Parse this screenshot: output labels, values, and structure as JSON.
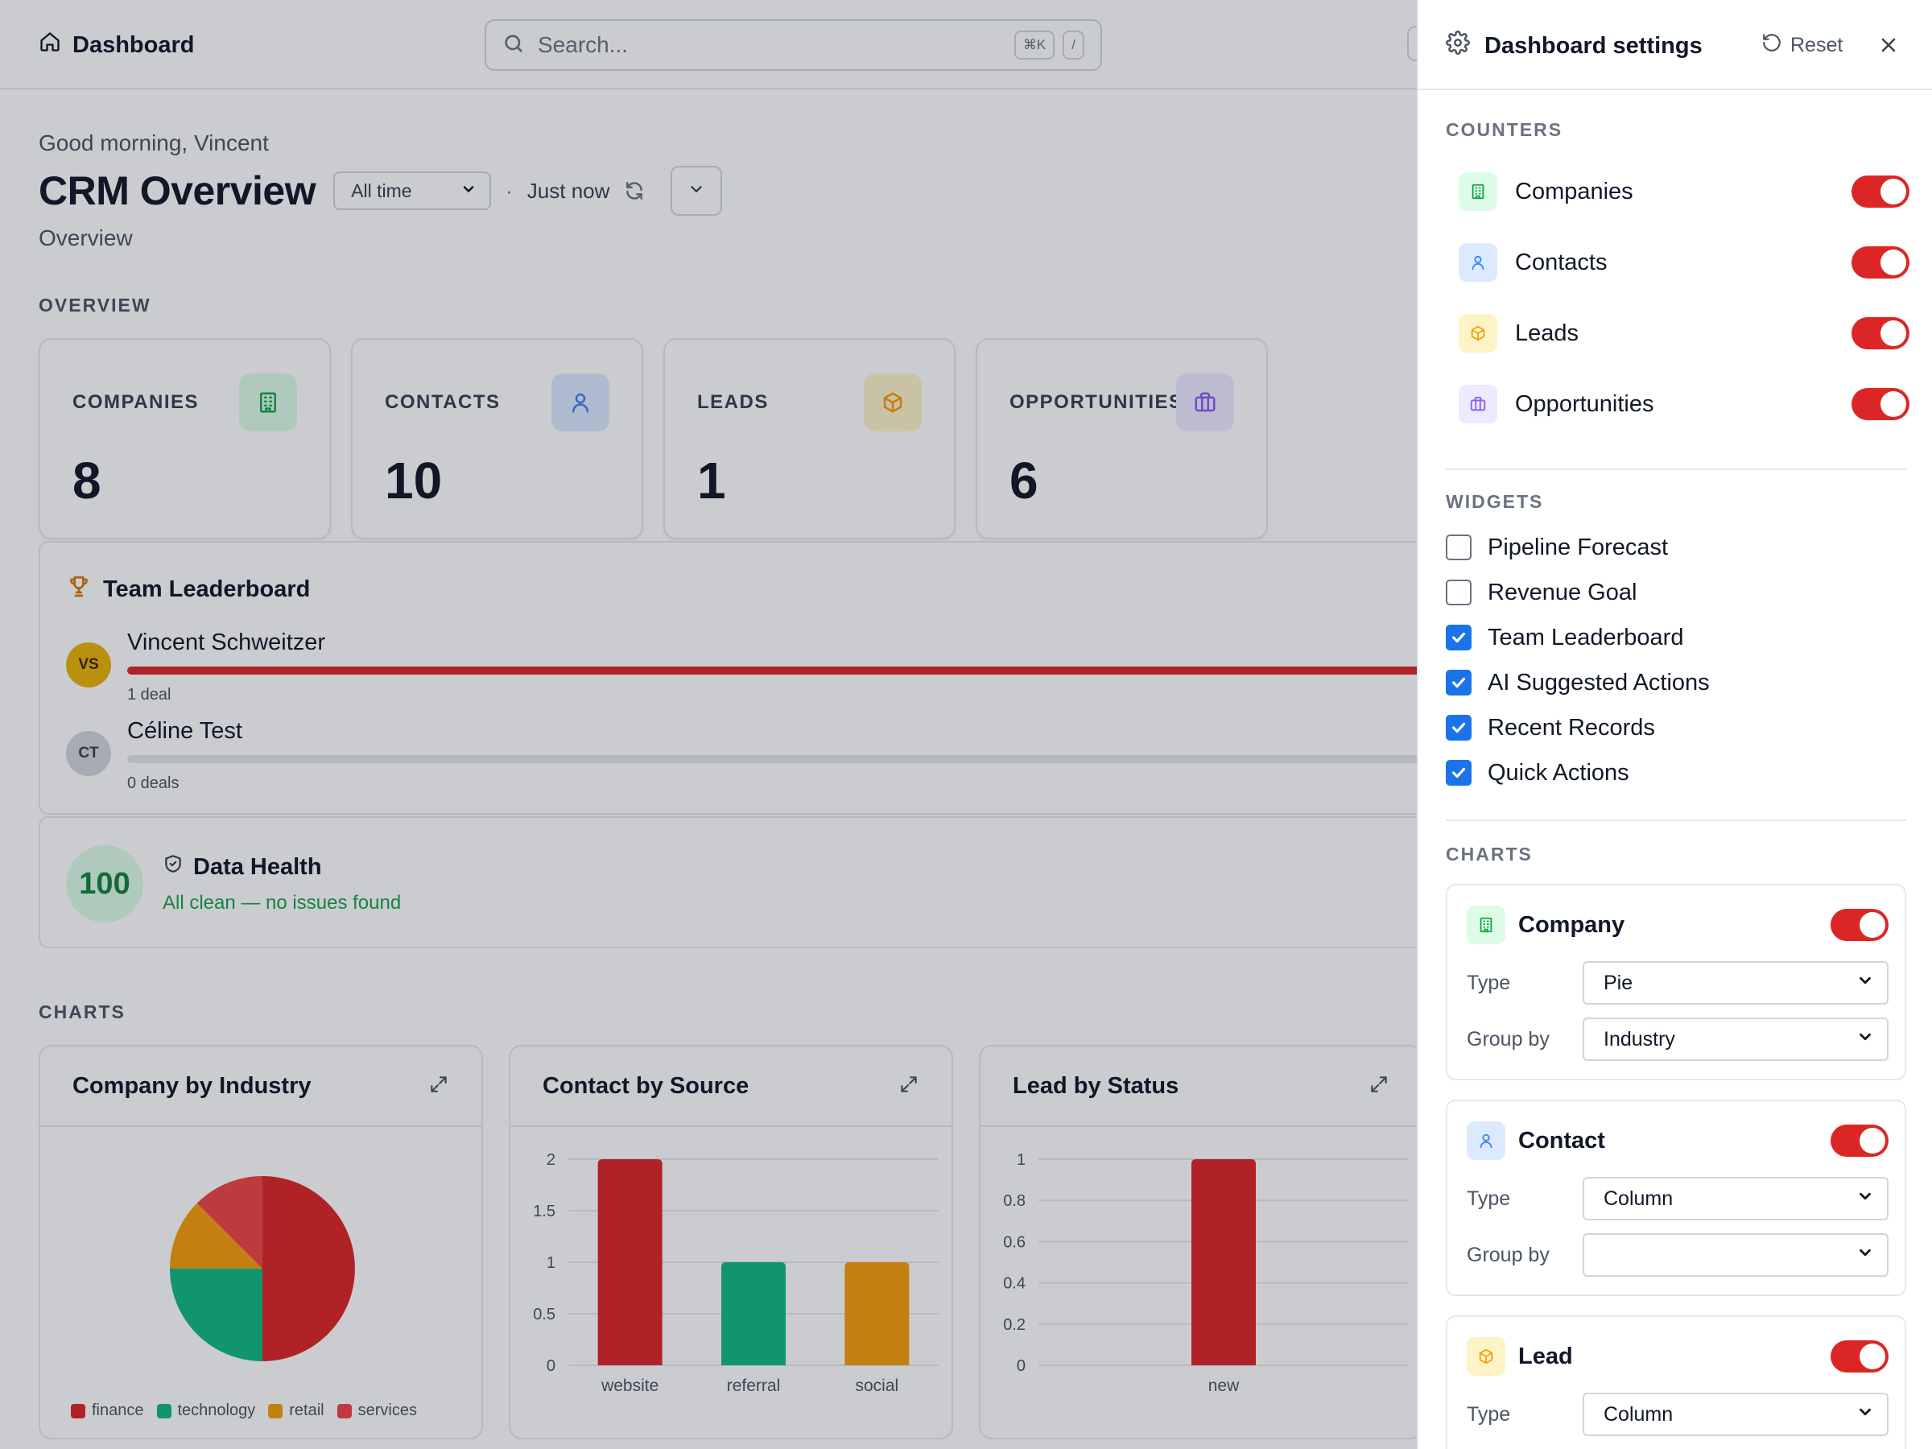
{
  "header": {
    "brand": "Dashboard",
    "search_placeholder": "Search...",
    "shortcut_primary": "⌘K",
    "shortcut_secondary": "/"
  },
  "page": {
    "greeting": "Good morning, Vincent",
    "title": "CRM Overview",
    "time_range": "All time",
    "separator": "·",
    "last_updated": "Just now",
    "subtitle": "Overview",
    "overview_label": "OVERVIEW",
    "charts_label": "CHARTS"
  },
  "stats": [
    {
      "label": "COMPANIES",
      "value": "8",
      "icon": "building-icon",
      "color": "#16a34a"
    },
    {
      "label": "CONTACTS",
      "value": "10",
      "icon": "user-icon",
      "color": "#3b82f6"
    },
    {
      "label": "LEADS",
      "value": "1",
      "icon": "box-icon",
      "color": "#f59e0b"
    },
    {
      "label": "OPPORTUNITIES",
      "value": "6",
      "icon": "briefcase-icon",
      "color": "#8b5cf6"
    }
  ],
  "leaderboard": {
    "title": "Team Leaderboard",
    "rows": [
      {
        "initials": "VS",
        "name": "Vincent Schweitzer",
        "deals": "1 deal",
        "share": 1.0
      },
      {
        "initials": "CT",
        "name": "Céline Test",
        "deals": "0 deals",
        "share": 0.0
      }
    ]
  },
  "data_health": {
    "score": "100",
    "title": "Data Health",
    "status": "All clean — no issues found"
  },
  "charts": [
    {
      "title": "Company by Industry"
    },
    {
      "title": "Contact by Source"
    },
    {
      "title": "Lead by Status"
    }
  ],
  "chart_data": [
    {
      "type": "pie",
      "title": "Company by Industry",
      "categories": [
        "finance",
        "technology",
        "retail",
        "services"
      ],
      "values": [
        4,
        2,
        1,
        1
      ],
      "colors": [
        "#dc2626",
        "#10b981",
        "#f59e0b",
        "#ef4444"
      ],
      "legend": "bottom"
    },
    {
      "type": "bar",
      "title": "Contact by Source",
      "categories": [
        "website",
        "referral",
        "social"
      ],
      "values": [
        2,
        1,
        1
      ],
      "colors": [
        "#dc2626",
        "#10b981",
        "#f59e0b"
      ],
      "ylim": [
        0,
        2
      ],
      "yticks": [
        "0",
        "0.5",
        "1",
        "1.5",
        "2"
      ],
      "grid": true
    },
    {
      "type": "bar",
      "title": "Lead by Status",
      "categories": [
        "new"
      ],
      "values": [
        1
      ],
      "colors": [
        "#dc2626"
      ],
      "ylim": [
        0,
        1
      ],
      "yticks": [
        "0",
        "0.2",
        "0.4",
        "0.6",
        "0.8",
        "1"
      ],
      "grid": true
    }
  ],
  "settings": {
    "title": "Dashboard settings",
    "reset_label": "Reset",
    "counters_label": "COUNTERS",
    "counters": [
      {
        "label": "Companies",
        "enabled": true,
        "icon": "building-icon"
      },
      {
        "label": "Contacts",
        "enabled": true,
        "icon": "user-icon"
      },
      {
        "label": "Leads",
        "enabled": true,
        "icon": "box-icon"
      },
      {
        "label": "Opportunities",
        "enabled": true,
        "icon": "briefcase-icon"
      }
    ],
    "widgets_label": "WIDGETS",
    "widgets": [
      {
        "label": "Pipeline Forecast",
        "checked": false
      },
      {
        "label": "Revenue Goal",
        "checked": false
      },
      {
        "label": "Team Leaderboard",
        "checked": true
      },
      {
        "label": "AI Suggested Actions",
        "checked": true
      },
      {
        "label": "Recent Records",
        "checked": true
      },
      {
        "label": "Quick Actions",
        "checked": true
      }
    ],
    "charts_label": "CHARTS",
    "type_label": "Type",
    "groupby_label": "Group by",
    "chart_settings": [
      {
        "name": "Company",
        "enabled": true,
        "type": "Pie",
        "group_by": "Industry",
        "icon": "building-icon"
      },
      {
        "name": "Contact",
        "enabled": true,
        "type": "Column",
        "group_by": "",
        "icon": "user-icon"
      },
      {
        "name": "Lead",
        "enabled": true,
        "type": "Column",
        "icon": "box-icon"
      }
    ]
  },
  "colors": {
    "accent": "#dc2626",
    "checkbox": "#1a73e8",
    "health": "#16a34a"
  }
}
